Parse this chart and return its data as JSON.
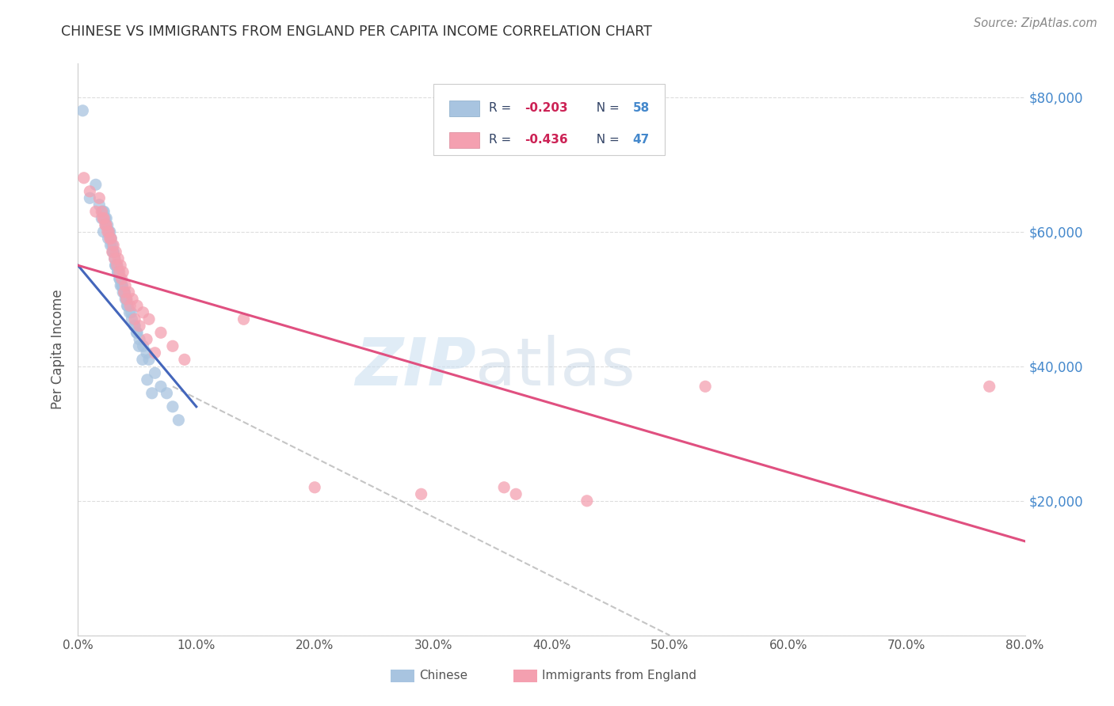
{
  "title": "CHINESE VS IMMIGRANTS FROM ENGLAND PER CAPITA INCOME CORRELATION CHART",
  "source": "Source: ZipAtlas.com",
  "ylabel": "Per Capita Income",
  "ytick_values": [
    0,
    20000,
    40000,
    60000,
    80000
  ],
  "xtick_values": [
    0,
    10,
    20,
    30,
    40,
    50,
    60,
    70,
    80
  ],
  "xlim": [
    0,
    80
  ],
  "ylim": [
    0,
    85000
  ],
  "chinese_color": "#a8c4e0",
  "england_color": "#f4a0b0",
  "background_color": "#ffffff",
  "grid_color": "#dddddd",
  "chinese_x": [
    0.4,
    1.0,
    1.5,
    1.8,
    2.0,
    2.1,
    2.2,
    2.3,
    2.4,
    2.5,
    2.6,
    2.7,
    2.8,
    2.9,
    3.0,
    3.1,
    3.2,
    3.3,
    3.4,
    3.5,
    3.6,
    3.7,
    3.8,
    3.9,
    4.0,
    4.1,
    4.2,
    4.5,
    4.8,
    5.0,
    5.2,
    5.5,
    5.8,
    6.0,
    6.5,
    7.0,
    7.5,
    8.0,
    8.5,
    2.15,
    2.35,
    2.55,
    2.75,
    2.95,
    3.15,
    3.35,
    3.55,
    3.75,
    3.95,
    4.15,
    4.35,
    4.55,
    4.75,
    4.95,
    5.15,
    5.45,
    5.85,
    6.25
  ],
  "chinese_y": [
    78000,
    65000,
    67000,
    64000,
    62000,
    63000,
    63000,
    62000,
    62000,
    61000,
    60000,
    60000,
    59000,
    58000,
    57000,
    56000,
    55000,
    55000,
    54000,
    53000,
    52000,
    52000,
    51000,
    51000,
    50000,
    50000,
    49000,
    48000,
    46000,
    45000,
    44000,
    43000,
    42000,
    41000,
    39000,
    37000,
    36000,
    34000,
    32000,
    60000,
    61000,
    59000,
    58000,
    57000,
    55000,
    54000,
    53000,
    52000,
    51000,
    49000,
    48000,
    47000,
    46000,
    45000,
    43000,
    41000,
    38000,
    36000
  ],
  "england_x": [
    0.5,
    1.0,
    1.5,
    1.8,
    2.0,
    2.2,
    2.4,
    2.6,
    2.8,
    3.0,
    3.2,
    3.4,
    3.6,
    3.8,
    4.0,
    4.3,
    4.6,
    5.0,
    5.5,
    6.0,
    7.0,
    8.0,
    9.0,
    2.1,
    2.3,
    2.5,
    2.7,
    2.9,
    3.1,
    3.3,
    3.5,
    3.7,
    3.9,
    4.1,
    4.4,
    4.8,
    5.2,
    5.8,
    6.5,
    14.0,
    20.0,
    29.0,
    36.0,
    37.0,
    43.0,
    53.0,
    77.0
  ],
  "england_y": [
    68000,
    66000,
    63000,
    65000,
    63000,
    62000,
    61000,
    60000,
    59000,
    58000,
    57000,
    56000,
    55000,
    54000,
    52000,
    51000,
    50000,
    49000,
    48000,
    47000,
    45000,
    43000,
    41000,
    62000,
    61000,
    60000,
    59000,
    57000,
    56000,
    55000,
    54000,
    53000,
    51000,
    50000,
    49000,
    47000,
    46000,
    44000,
    42000,
    47000,
    22000,
    21000,
    22000,
    21000,
    20000,
    37000,
    37000
  ],
  "blue_line_x0": 0,
  "blue_line_y0": 55000,
  "blue_line_x1": 10,
  "blue_line_y1": 34000,
  "blue_line_color": "#4466bb",
  "pink_line_x0": 0,
  "pink_line_y0": 55000,
  "pink_line_x1": 80,
  "pink_line_y1": 14000,
  "pink_line_color": "#e05080",
  "dash_line_x0": 8,
  "dash_line_y0": 37000,
  "dash_line_x1": 50,
  "dash_line_y1": 0,
  "dash_line_color": "#bbbbbb"
}
